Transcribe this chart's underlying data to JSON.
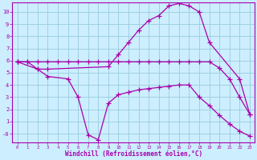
{
  "xlabel": "Windchill (Refroidissement éolien,°C)",
  "bg_color": "#cceeff",
  "grid_color": "#99ccdd",
  "line_color": "#aa00aa",
  "xlim": [
    -0.5,
    23.5
  ],
  "ylim": [
    -0.7,
    10.8
  ],
  "yticks": [
    0,
    1,
    2,
    3,
    4,
    5,
    6,
    7,
    8,
    9,
    10
  ],
  "ytick_labels": [
    "-0",
    "1",
    "2",
    "3",
    "4",
    "5",
    "6",
    "7",
    "8",
    "9",
    "10"
  ],
  "xticks": [
    0,
    1,
    2,
    3,
    4,
    5,
    6,
    7,
    8,
    9,
    10,
    11,
    12,
    13,
    14,
    15,
    16,
    17,
    18,
    19,
    20,
    21,
    22,
    23
  ],
  "line1_x": [
    0,
    1,
    2,
    3,
    4,
    5,
    6,
    7,
    8,
    9,
    10,
    11,
    12,
    13,
    14,
    15,
    16,
    17,
    18,
    19,
    20,
    21,
    22,
    23
  ],
  "line1_y": [
    5.9,
    5.9,
    5.9,
    5.9,
    5.9,
    5.9,
    5.9,
    5.9,
    5.9,
    5.9,
    5.9,
    5.9,
    5.9,
    5.9,
    5.9,
    5.9,
    5.9,
    5.9,
    5.9,
    5.9,
    5.4,
    4.5,
    3.0,
    1.6
  ],
  "line2_x": [
    0,
    1,
    2,
    3,
    9,
    10,
    11,
    12,
    13,
    14,
    15,
    16,
    17,
    18,
    19,
    22,
    23
  ],
  "line2_y": [
    5.9,
    5.9,
    5.3,
    5.3,
    5.5,
    6.5,
    7.5,
    8.5,
    9.3,
    9.7,
    10.5,
    10.7,
    10.5,
    10.0,
    7.5,
    4.5,
    1.6
  ],
  "line3_x": [
    0,
    2,
    3,
    5,
    6,
    7,
    8,
    9,
    10,
    11,
    12,
    13,
    14,
    15,
    16,
    17,
    18,
    19,
    20,
    21,
    22,
    23
  ],
  "line3_y": [
    5.9,
    5.3,
    4.7,
    4.5,
    3.0,
    -0.1,
    -0.5,
    2.5,
    3.2,
    3.4,
    3.6,
    3.7,
    3.8,
    3.9,
    4.0,
    4.0,
    3.0,
    2.3,
    1.5,
    0.8,
    0.2,
    -0.2
  ]
}
